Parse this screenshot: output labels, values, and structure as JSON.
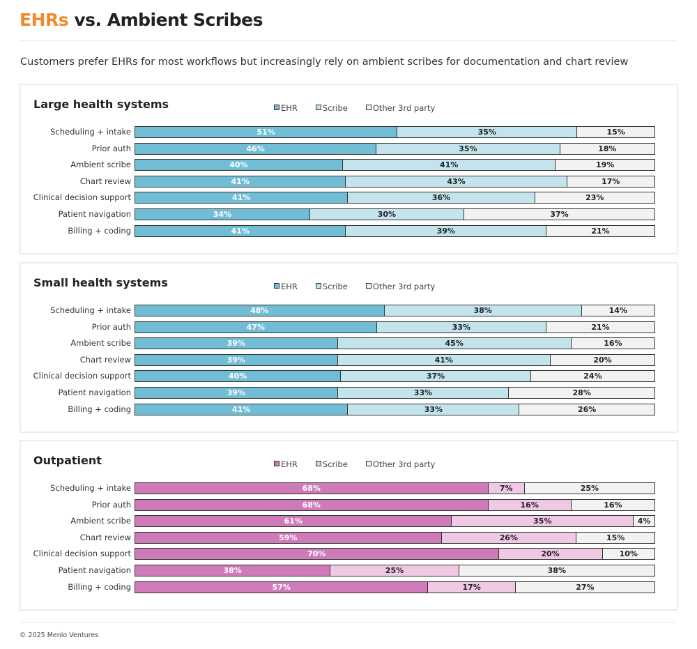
{
  "header": {
    "title_highlight": "EHRs",
    "title_rest": " vs. Ambient Scribes",
    "subtitle": "Customers prefer EHRs for most workflows but increasingly rely on ambient scribes for documentation and chart review"
  },
  "footer": "© 2025 Menlo Ventures",
  "chart_data": [
    {
      "type": "bar",
      "orientation": "horizontal",
      "stacked": true,
      "title": "Large health systems",
      "legend": "top",
      "colors": [
        "#72bdd6",
        "#c3e4ec",
        "#f2f2f2"
      ],
      "categories": [
        "Scheduling + intake",
        "Prior auth",
        "Ambient scribe",
        "Chart review",
        "Clinical decision support",
        "Patient navigation",
        "Billing + coding"
      ],
      "series": [
        {
          "name": "EHR",
          "values": [
            51,
            46,
            40,
            41,
            41,
            34,
            41
          ]
        },
        {
          "name": "Scribe",
          "values": [
            35,
            35,
            41,
            43,
            36,
            30,
            39
          ]
        },
        {
          "name": "Other 3rd party",
          "values": [
            15,
            18,
            19,
            17,
            23,
            37,
            21
          ]
        }
      ]
    },
    {
      "type": "bar",
      "orientation": "horizontal",
      "stacked": true,
      "title": "Small health systems",
      "legend": "top",
      "colors": [
        "#72bdd6",
        "#c3e4ec",
        "#f2f2f2"
      ],
      "categories": [
        "Scheduling + intake",
        "Prior auth",
        "Ambient scribe",
        "Chart review",
        "Clinical decision support",
        "Patient navigation",
        "Billing + coding"
      ],
      "series": [
        {
          "name": "EHR",
          "values": [
            48,
            47,
            39,
            39,
            40,
            39,
            41
          ]
        },
        {
          "name": "Scribe",
          "values": [
            38,
            33,
            45,
            41,
            37,
            33,
            33
          ]
        },
        {
          "name": "Other 3rd party",
          "values": [
            14,
            21,
            16,
            20,
            24,
            28,
            26
          ]
        }
      ]
    },
    {
      "type": "bar",
      "orientation": "horizontal",
      "stacked": true,
      "title": "Outpatient",
      "legend": "top",
      "colors": [
        "#cf7ab9",
        "#efc8e3",
        "#f2f2f2"
      ],
      "categories": [
        "Scheduling + intake",
        "Prior auth",
        "Ambient scribe",
        "Chart review",
        "Clinical decision support",
        "Patient navigation",
        "Billing + coding"
      ],
      "series": [
        {
          "name": "EHR",
          "values": [
            68,
            68,
            61,
            59,
            70,
            38,
            57
          ]
        },
        {
          "name": "Scribe",
          "values": [
            7,
            16,
            35,
            26,
            20,
            25,
            17
          ]
        },
        {
          "name": "Other 3rd party",
          "values": [
            25,
            16,
            4,
            15,
            10,
            38,
            27
          ]
        }
      ]
    }
  ]
}
